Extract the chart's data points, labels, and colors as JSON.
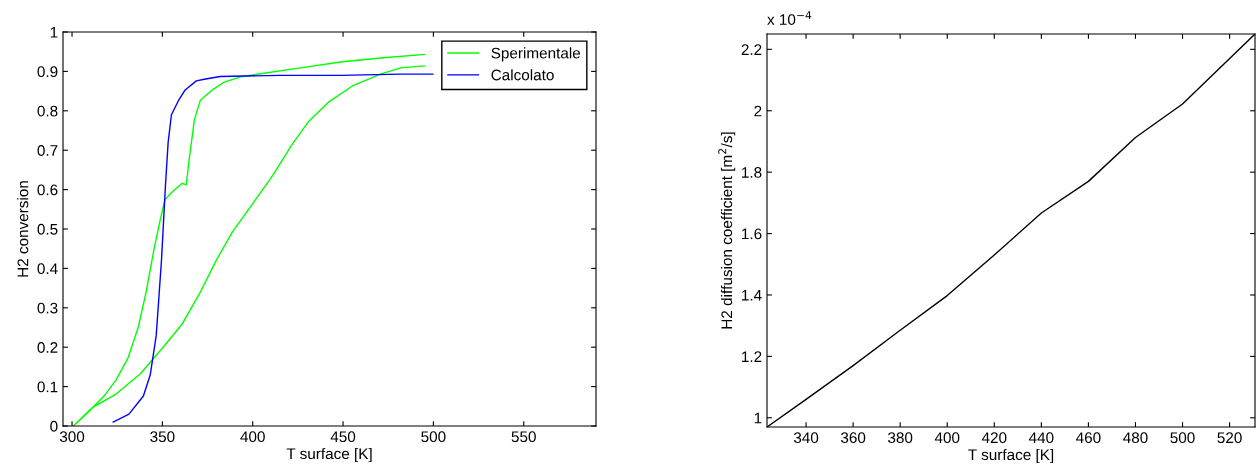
{
  "chart_data": [
    {
      "type": "line",
      "xlabel": "T surface [K]",
      "ylabel": "H2 conversion",
      "xlim": [
        295,
        590
      ],
      "ylim": [
        0,
        1
      ],
      "xticks": [
        300,
        350,
        400,
        450,
        500,
        550
      ],
      "yticks": [
        0,
        0.1,
        0.2,
        0.3,
        0.4,
        0.5,
        0.6,
        0.7,
        0.8,
        0.9,
        1
      ],
      "grid": false,
      "legend": "top right",
      "series": [
        {
          "name": "Sperimentale",
          "color": "#00ff00",
          "x": [
            300.7,
            311,
            324.4,
            337.7,
            351,
            361,
            371,
            379.9,
            388.7,
            399.8,
            410.9,
            422,
            430.8,
            441.9,
            455.2,
            470.7,
            481.9,
            495.2,
            null,
            300.7,
            308.9,
            317.7,
            324.4,
            331,
            336.6,
            341,
            345.5,
            348.8,
            351.4,
            355.4,
            361,
            363.2,
            364.8,
            367.7,
            371,
            377.6,
            384.3,
            393.2,
            404.3,
            426.4,
            448.6,
            470.7,
            495
          ],
          "values": [
            0,
            0.046,
            0.081,
            0.132,
            0.203,
            0.259,
            0.34,
            0.421,
            0.492,
            0.563,
            0.635,
            0.716,
            0.772,
            0.822,
            0.863,
            0.893,
            0.909,
            0.914,
            null,
            0,
            0.035,
            0.076,
            0.117,
            0.173,
            0.25,
            0.34,
            0.452,
            0.523,
            0.574,
            0.594,
            0.616,
            0.612,
            0.675,
            0.777,
            0.827,
            0.853,
            0.873,
            0.886,
            0.894,
            0.909,
            0.924,
            0.934,
            0.943
          ]
        },
        {
          "name": "Calcolato",
          "color": "#0000ff",
          "x": [
            322.8,
            331.5,
            339.5,
            343.3,
            346.6,
            349.5,
            351.7,
            353.2,
            355,
            358.8,
            362.6,
            368.8,
            373.2,
            382,
            415,
            448.6,
            482,
            499.7
          ],
          "values": [
            0.01,
            0.03,
            0.076,
            0.13,
            0.23,
            0.42,
            0.61,
            0.72,
            0.79,
            0.825,
            0.853,
            0.876,
            0.88,
            0.887,
            0.89,
            0.89,
            0.893,
            0.893
          ]
        }
      ]
    },
    {
      "type": "line",
      "xlabel": "T surface [K]",
      "ylabel": "H2 diffusion coefficient [m$^{2}$/s]",
      "annotations": [
        "x 10$^{−4}$"
      ],
      "xlim": [
        323.4,
        530.8
      ],
      "ylim": [
        0.97,
        2.25
      ],
      "xticks": [
        340,
        360,
        380,
        400,
        420,
        440,
        460,
        480,
        500,
        520
      ],
      "yticks": [
        1,
        1.2,
        1.4,
        1.6,
        1.8,
        2,
        2.2
      ],
      "grid": false,
      "series": [
        {
          "color": "#000000",
          "x": [
            323.4,
            340,
            360,
            380,
            400,
            420,
            440,
            460,
            480,
            500,
            530.8
          ],
          "values": [
            0.97,
            1.06,
            1.17,
            1.285,
            1.398,
            1.53,
            1.667,
            1.77,
            1.913,
            2.022,
            2.25
          ]
        }
      ]
    }
  ]
}
